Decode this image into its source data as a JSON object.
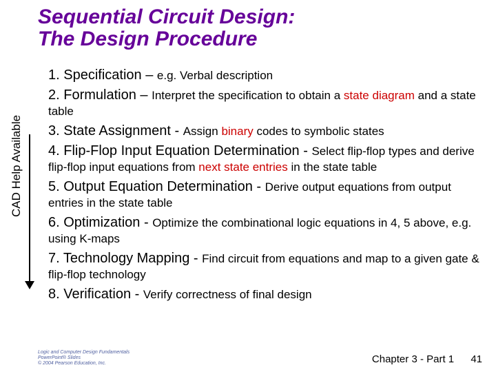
{
  "title": {
    "line1": "Sequential Circuit Design:",
    "line2": "The Design Procedure",
    "color": "#660099",
    "fontsize": 30
  },
  "cad_label": "CAD Help Available",
  "steps": [
    {
      "num": "1",
      "name": "Specification",
      "sep": " – ",
      "desc_pre": "e.g. Verbal description",
      "desc_post": ""
    },
    {
      "num": "2",
      "name": "Formulation",
      "sep": " – ",
      "desc_pre": "Interpret the specification to obtain a ",
      "red": "state diagram",
      "desc_post": " and a state table"
    },
    {
      "num": "3",
      "name": "State Assignment",
      "sep": " - ",
      "desc_pre": "Assign ",
      "red": "binary",
      "desc_post": " codes to symbolic states"
    },
    {
      "num": "4",
      "name": "Flip-Flop Input Equation Determination",
      "sep": " - ",
      "desc_pre": "Select flip-flop types and derive flip-flop input equations from ",
      "red": "next state entries",
      "desc_post": " in the state table"
    },
    {
      "num": "5",
      "name": "Output Equation Determination",
      "sep": " - ",
      "desc_pre": "Derive output equations from output entries in the state table",
      "desc_post": ""
    },
    {
      "num": "6",
      "name": "Optimization",
      "sep": " - ",
      "desc_pre": "Optimize the combinational logic equations in 4, 5 above, e.g. using K-maps",
      "desc_post": ""
    },
    {
      "num": "7",
      "name": "Technology Mapping",
      "sep": " - ",
      "desc_pre": "Find circuit from equations and map to a given gate & flip-flop technology",
      "desc_post": ""
    },
    {
      "num": "8",
      "name": "Verification",
      "sep": " - ",
      "desc_pre": "Verify correctness of final design",
      "desc_post": ""
    }
  ],
  "footer": {
    "chapter": "Chapter 3 - Part 1",
    "page": "41"
  },
  "logo": {
    "l1": "Logic and Computer Design Fundamentals",
    "l2": "PowerPoint® Slides",
    "l3": "© 2004 Pearson Education, Inc."
  },
  "colors": {
    "title": "#660099",
    "red": "#cc0000",
    "text": "#000000",
    "background": "#ffffff",
    "logo": "#5060a0"
  }
}
